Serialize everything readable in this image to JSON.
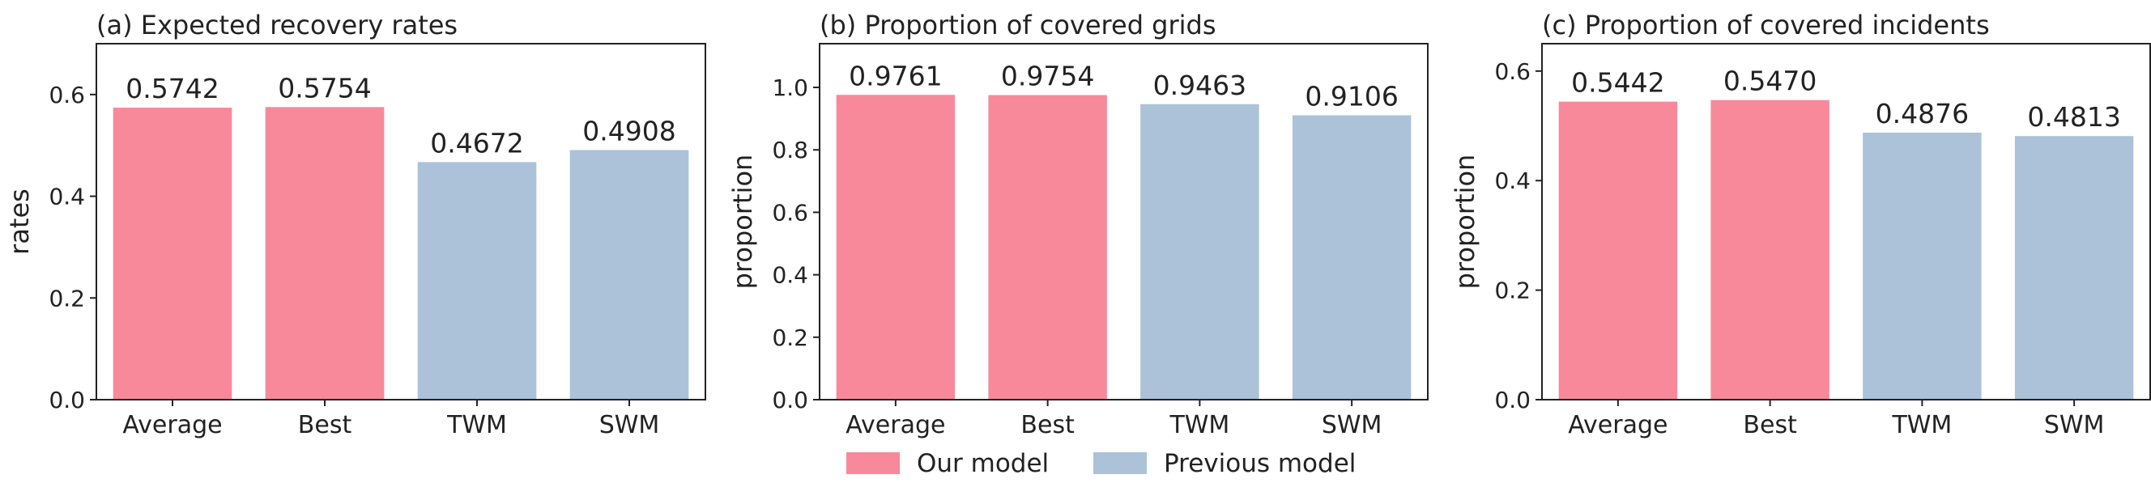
{
  "colors": {
    "our_model": "#f7899b",
    "previous_model": "#abc2d9",
    "axis": "#222222"
  },
  "legend": {
    "placement": "bottom-center",
    "entries": [
      {
        "label": "Our model",
        "color_key": "our_model"
      },
      {
        "label": "Previous model",
        "color_key": "previous_model"
      }
    ]
  },
  "chart_data": [
    {
      "type": "bar",
      "title": "(a) Expected recovery rates",
      "xlabel": "",
      "ylabel": "rates",
      "ylim": [
        0,
        0.7
      ],
      "yticks": [
        0.0,
        0.2,
        0.4,
        0.6
      ],
      "ytick_labels": [
        "0.0",
        "0.2",
        "0.4",
        "0.6"
      ],
      "categories": [
        "Average",
        "Best",
        "TWM",
        "SWM"
      ],
      "values": [
        0.5742,
        0.5754,
        0.4672,
        0.4908
      ],
      "data_labels": [
        "0.5742",
        "0.5754",
        "0.4672",
        "0.4908"
      ],
      "groups": [
        "our_model",
        "our_model",
        "previous_model",
        "previous_model"
      ],
      "grid": false
    },
    {
      "type": "bar",
      "title": "(b) Proportion of covered grids",
      "xlabel": "",
      "ylabel": "proportion",
      "ylim": [
        0,
        1.14
      ],
      "yticks": [
        0.0,
        0.2,
        0.4,
        0.6,
        0.8,
        1.0
      ],
      "ytick_labels": [
        "0.0",
        "0.2",
        "0.4",
        "0.6",
        "0.8",
        "1.0"
      ],
      "categories": [
        "Average",
        "Best",
        "TWM",
        "SWM"
      ],
      "values": [
        0.9761,
        0.9754,
        0.9463,
        0.9106
      ],
      "data_labels": [
        "0.9761",
        "0.9754",
        "0.9463",
        "0.9106"
      ],
      "groups": [
        "our_model",
        "our_model",
        "previous_model",
        "previous_model"
      ],
      "grid": false
    },
    {
      "type": "bar",
      "title": "(c) Proportion of covered incidents",
      "xlabel": "",
      "ylabel": "proportion",
      "ylim": [
        0,
        0.65
      ],
      "yticks": [
        0.0,
        0.2,
        0.4,
        0.6
      ],
      "ytick_labels": [
        "0.0",
        "0.2",
        "0.4",
        "0.6"
      ],
      "categories": [
        "Average",
        "Best",
        "TWM",
        "SWM"
      ],
      "values": [
        0.5442,
        0.547,
        0.4876,
        0.4813
      ],
      "data_labels": [
        "0.5442",
        "0.5470",
        "0.4876",
        "0.4813"
      ],
      "groups": [
        "our_model",
        "our_model",
        "previous_model",
        "previous_model"
      ],
      "grid": false
    }
  ]
}
